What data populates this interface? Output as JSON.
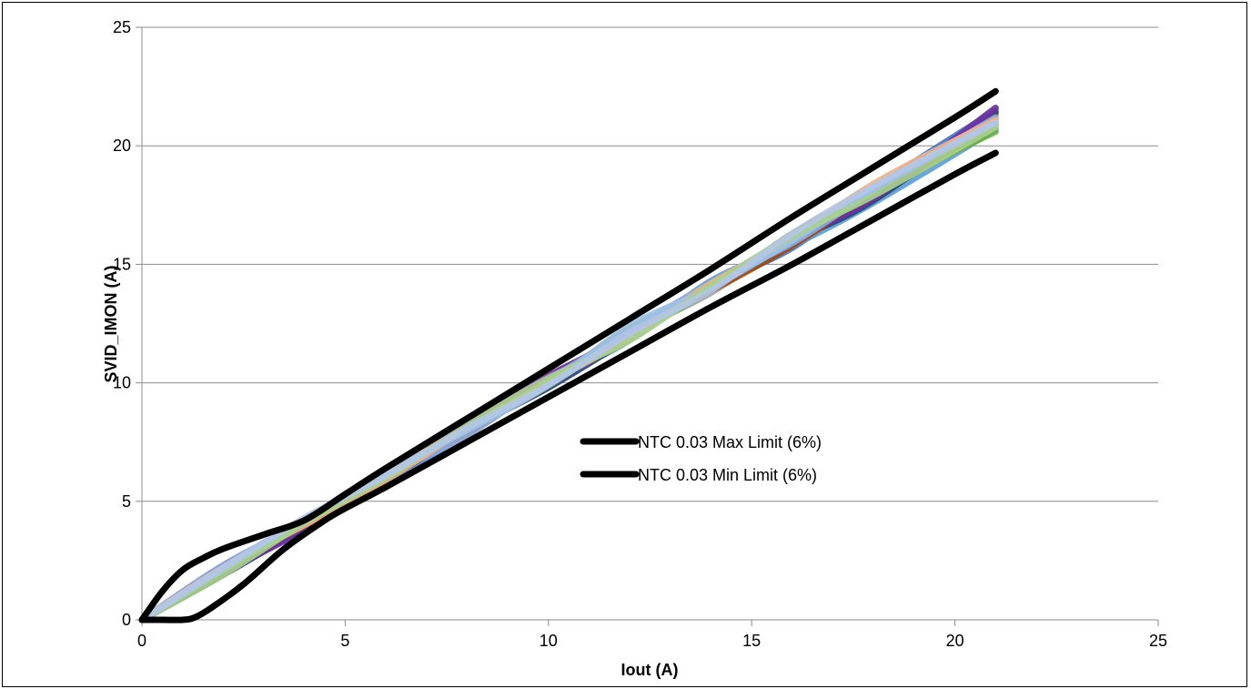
{
  "chart_data": {
    "type": "line",
    "title": "",
    "xlabel": "Iout (A)",
    "ylabel": "SVID_IMON (A)",
    "xlim": [
      0,
      25
    ],
    "ylim": [
      0,
      25
    ],
    "xticks": [
      "0",
      "5",
      "10",
      "15",
      "20",
      "25"
    ],
    "yticks": [
      "0",
      "5",
      "10",
      "15",
      "20",
      "25"
    ],
    "grid": "horizontal",
    "legend_position": "center-right",
    "limit_series": [
      {
        "name": "NTC 0.03 Max Limit (6%)",
        "color": "#000000",
        "x": [
          0,
          0.5,
          1,
          1.5,
          2,
          3,
          4,
          5,
          6,
          8,
          10,
          12,
          14,
          16,
          18,
          20,
          21
        ],
        "y": [
          0,
          1.2,
          2.1,
          2.6,
          3.0,
          3.6,
          4.2,
          5.3,
          6.4,
          8.5,
          10.6,
          12.7,
          14.8,
          17.0,
          19.1,
          21.2,
          22.3
        ]
      },
      {
        "name": "NTC 0.03 Min Limit (6%)",
        "color": "#000000",
        "x": [
          0,
          0.5,
          1,
          1.3,
          1.7,
          2.5,
          3.5,
          4.5,
          5,
          6,
          8,
          10,
          12,
          14,
          16,
          18,
          20,
          21
        ],
        "y": [
          0,
          0,
          0,
          0.1,
          0.5,
          1.5,
          3.0,
          4.2,
          4.7,
          5.6,
          7.5,
          9.4,
          11.3,
          13.2,
          15.0,
          16.9,
          18.8,
          19.7
        ]
      }
    ],
    "measurement_series": [
      {
        "color": "#4472c4",
        "y_offsets": [
          0,
          0.3,
          0.1,
          -0.2,
          0.1,
          -0.1,
          0.2,
          0.1,
          -0.3,
          0.2,
          0.5
        ]
      },
      {
        "color": "#ed7d31",
        "y_offsets": [
          0,
          0.1,
          0.2,
          0.1,
          -0.2,
          0.1,
          -0.1,
          0.2,
          -0.1,
          -0.2,
          0.3
        ]
      },
      {
        "color": "#a5a5a5",
        "y_offsets": [
          0,
          -0.1,
          0.0,
          0.2,
          0.0,
          0.2,
          0.1,
          -0.2,
          0.1,
          0.3,
          0.0
        ]
      },
      {
        "color": "#ffc000",
        "y_offsets": [
          0,
          0.2,
          -0.1,
          0.0,
          0.2,
          -0.2,
          0.2,
          0.0,
          0.2,
          -0.1,
          -0.2
        ]
      },
      {
        "color": "#5b9bd5",
        "y_offsets": [
          0,
          0.0,
          0.2,
          -0.3,
          -0.1,
          0.0,
          -0.2,
          0.3,
          -0.2,
          -0.4,
          -0.3
        ]
      },
      {
        "color": "#70ad47",
        "y_offsets": [
          0,
          0.2,
          0.0,
          0.1,
          0.1,
          0.1,
          0.0,
          -0.1,
          0.3,
          0.1,
          -0.4
        ]
      },
      {
        "color": "#264478",
        "y_offsets": [
          0,
          -0.1,
          -0.1,
          -0.1,
          0.0,
          -0.2,
          -0.1,
          0.2,
          0.0,
          -0.3,
          0.4
        ]
      },
      {
        "color": "#9e480e",
        "y_offsets": [
          0,
          0.1,
          0.1,
          0.2,
          -0.1,
          0.0,
          0.3,
          -0.1,
          -0.2,
          0.0,
          -0.1
        ]
      },
      {
        "color": "#7030a0",
        "y_offsets": [
          0,
          0.0,
          -0.2,
          0.0,
          0.2,
          0.3,
          0.0,
          0.1,
          0.1,
          -0.2,
          0.6
        ]
      },
      {
        "color": "#8faadc",
        "y_offsets": [
          0,
          0.3,
          0.1,
          0.1,
          -0.2,
          0.1,
          0.2,
          0.2,
          -0.1,
          0.1,
          0.2
        ]
      },
      {
        "color": "#f4b183",
        "y_offsets": [
          0,
          0.2,
          0.0,
          -0.1,
          0.1,
          0.0,
          -0.1,
          0.2,
          0.1,
          0.4,
          0.1
        ]
      },
      {
        "color": "#9dc3e6",
        "y_offsets": [
          0,
          0.1,
          0.2,
          0.2,
          0.0,
          -0.1,
          0.4,
          0.0,
          0.0,
          0.2,
          -0.1
        ]
      },
      {
        "color": "#a9d18e",
        "y_offsets": [
          0,
          -0.1,
          0.1,
          0.0,
          0.2,
          0.2,
          -0.2,
          0.1,
          0.2,
          -0.1,
          -0.2
        ]
      },
      {
        "color": "#b4c7e7",
        "y_offsets": [
          0,
          0.2,
          0.3,
          0.1,
          0.1,
          -0.1,
          0.1,
          -0.1,
          0.3,
          0.3,
          0.0
        ]
      }
    ],
    "measurement_x": [
      0,
      2,
      4,
      6,
      8,
      10,
      12,
      14,
      16,
      18,
      21
    ]
  }
}
